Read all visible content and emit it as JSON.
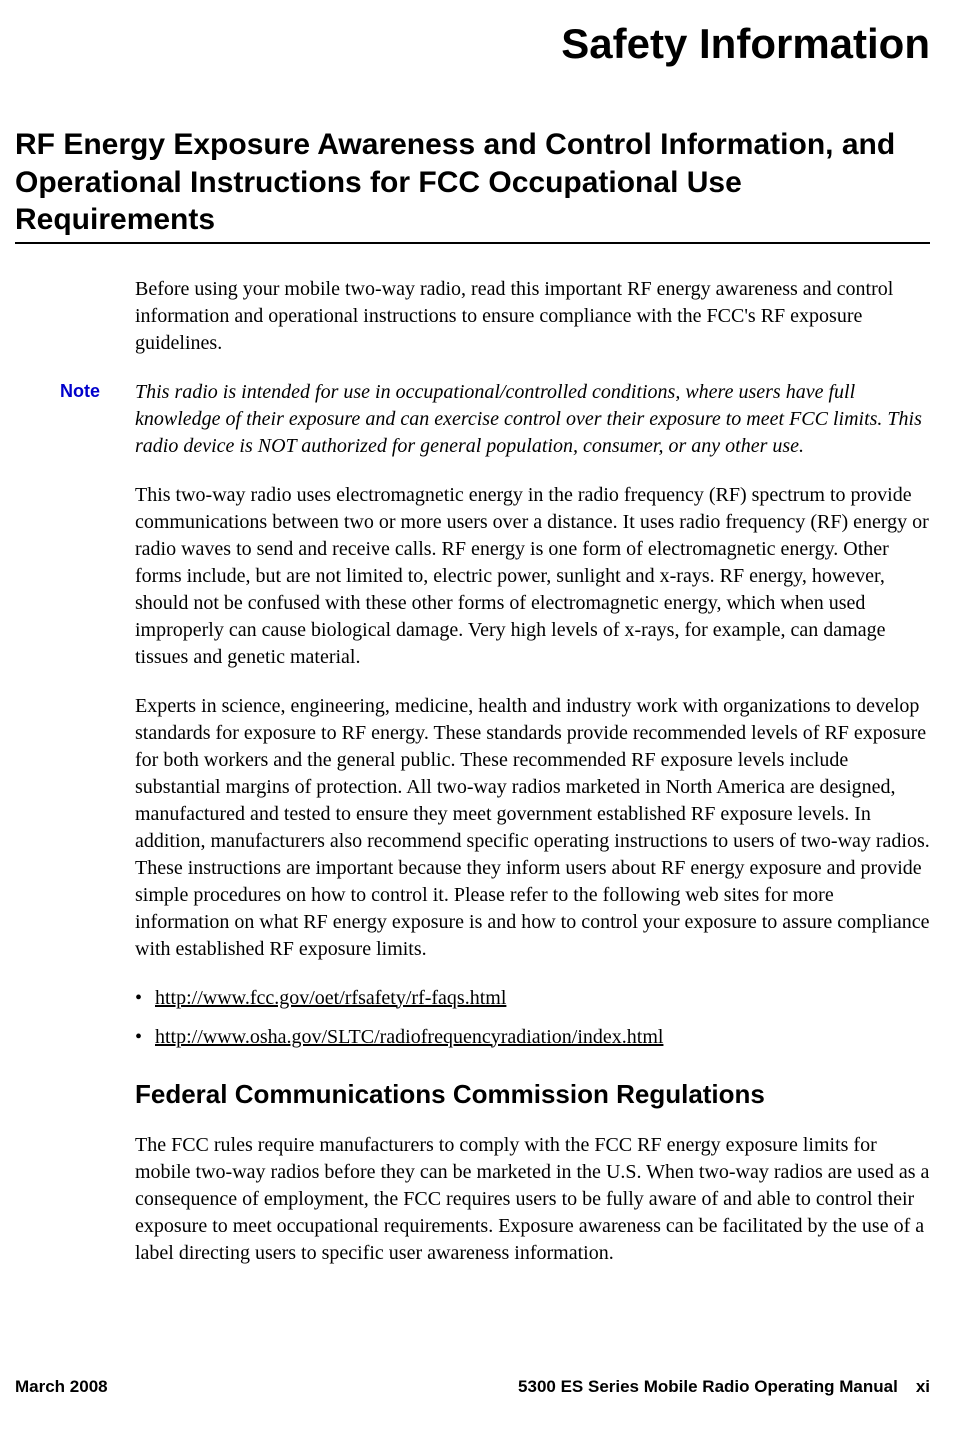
{
  "page_title": "Safety Information",
  "section_heading": "RF Energy Exposure Awareness and Control Information, and Operational Instructions for FCC Occupational Use Requirements",
  "intro": "Before using your mobile two-way radio, read this important RF energy awareness and control information and operational instructions to ensure compliance with the FCC's RF exposure guidelines.",
  "note": {
    "label": "Note",
    "text": "This radio is intended for use in occupational/controlled conditions, where users have full knowledge of their exposure and can exercise control over their exposure to meet FCC limits. This radio device is NOT authorized for general population, consumer, or any other use.",
    "label_color": "#0000cc"
  },
  "para_rf": "This two-way radio uses electromagnetic energy in the radio frequency (RF) spectrum to provide communications between two or more users over a distance. It uses radio frequency (RF) energy or radio waves to send and receive calls. RF energy is one form of electromagnetic energy. Other forms include, but are not limited to, electric power, sunlight and x-rays. RF energy, however, should not be confused with these other forms of electromagnetic energy, which when used improperly can cause biological damage. Very high levels of x-rays, for example, can damage tissues and genetic material.",
  "para_experts": "Experts in science, engineering, medicine, health and industry work with organizations to develop standards for exposure to RF energy. These standards provide recommended levels of RF exposure for both workers and the general public. These recommended RF exposure levels include substantial margins of protection. All two-way radios marketed in North America are designed, manufactured and tested to ensure they meet government established RF exposure levels. In addition, manufacturers also recommend specific operating instructions to users of two-way radios. These instructions are important because they inform users about RF energy exposure and provide simple procedures on how to control it. Please refer to the following web sites for more information on what RF energy exposure is and how to control your exposure to assure compliance with established RF exposure limits.",
  "links": [
    "http://www.fcc.gov/oet/rfsafety/rf-faqs.html",
    "http://www.osha.gov/SLTC/radiofrequencyradiation/index.html"
  ],
  "sub_heading": "Federal Communications Commission Regulations",
  "para_fcc": "The FCC rules require manufacturers to comply with the FCC RF energy exposure limits for mobile two-way radios before they can be marketed in the U.S. When two-way radios are used as a consequence of employment, the FCC requires users to be fully aware of and able to control their exposure to meet occupational requirements. Exposure awareness can be facilitated by the use of a label directing users to specific user awareness information.",
  "footer": {
    "date": "March 2008",
    "manual_title": "5300 ES Series Mobile Radio Operating Manual",
    "page_num": "xi"
  },
  "colors": {
    "background": "#ffffff",
    "text": "#000000",
    "note_label": "#0000cc",
    "rule": "#000000"
  },
  "typography": {
    "title_fontsize": 42,
    "heading_fontsize": 30,
    "subheading_fontsize": 26,
    "body_fontsize": 20,
    "footer_fontsize": 17,
    "body_family": "Times New Roman",
    "heading_family": "Arial"
  }
}
